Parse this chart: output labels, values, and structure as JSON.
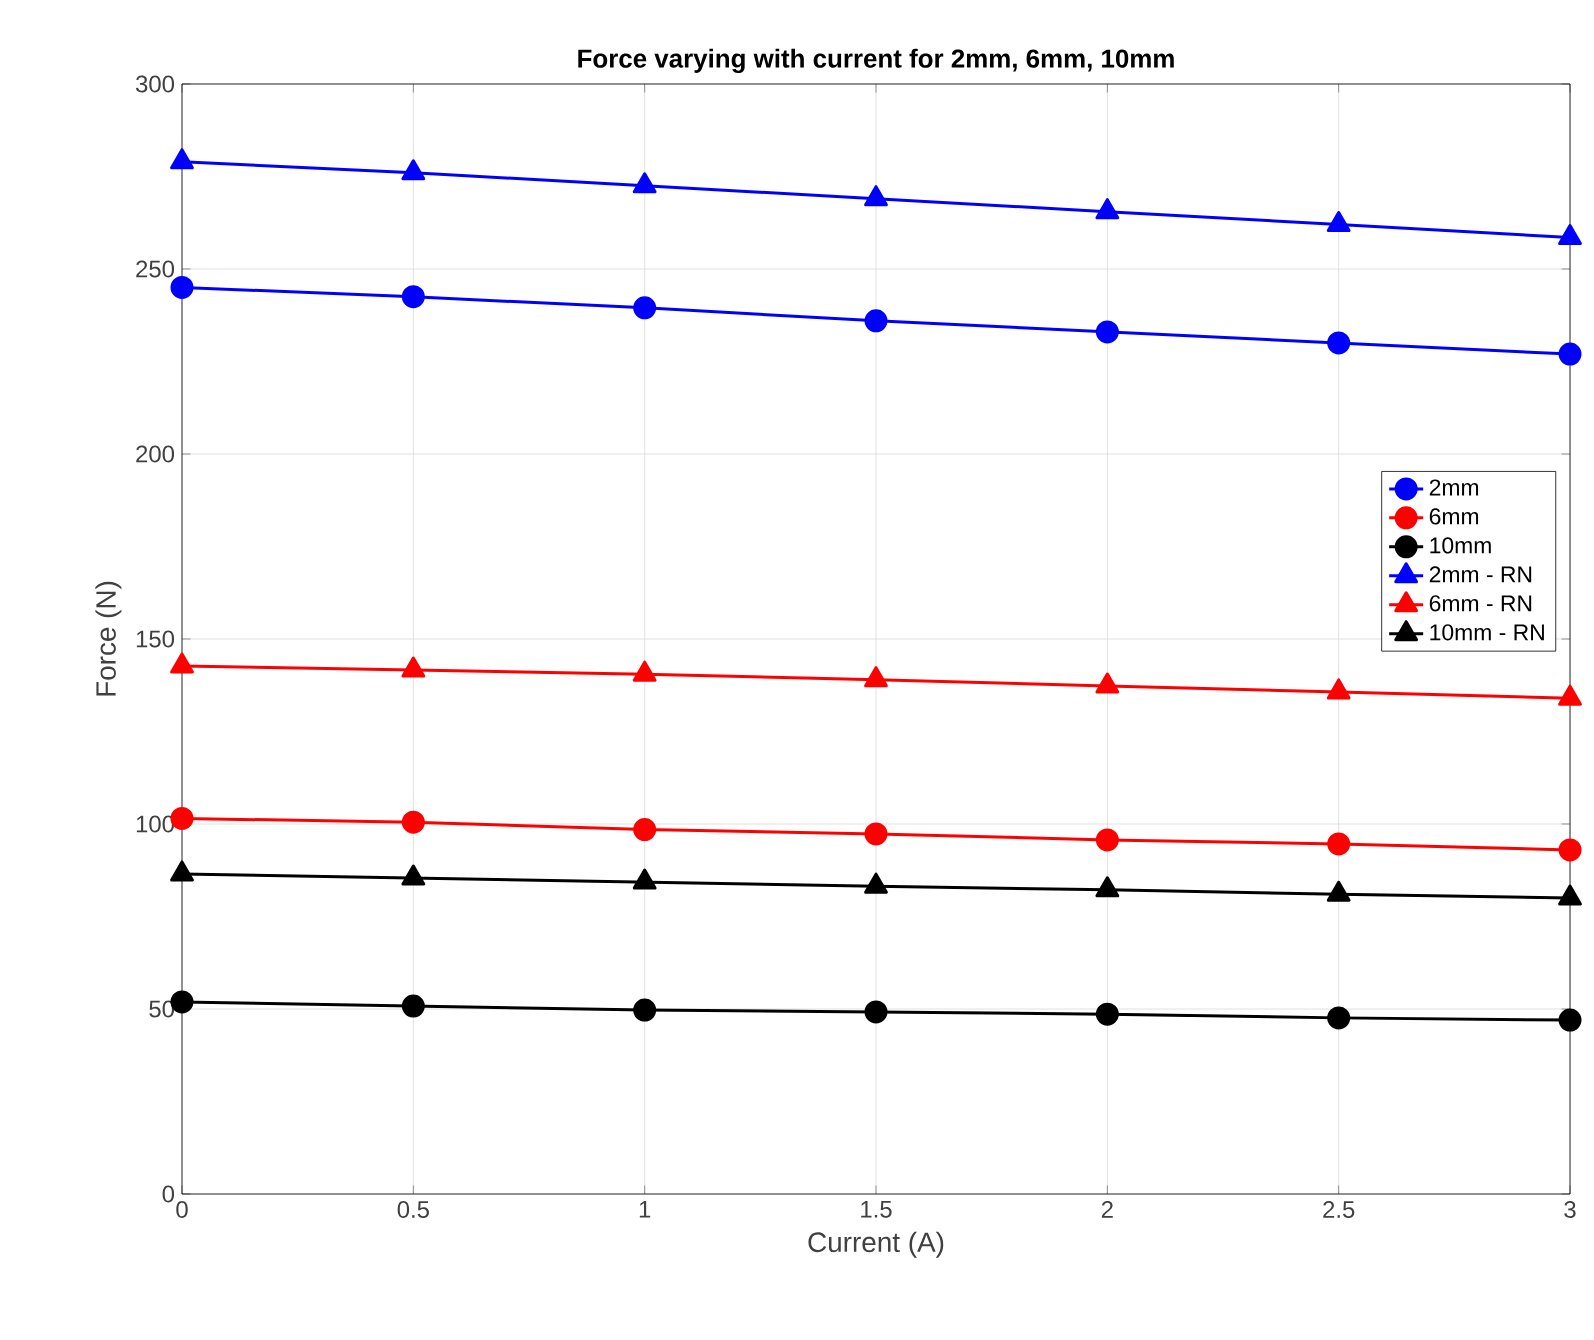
{
  "chart_data": {
    "type": "line",
    "title": "Force varying with current for 2mm, 6mm, 10mm",
    "xlabel": "Current (A)",
    "ylabel": "Force (N)",
    "x": [
      0,
      0.5,
      1,
      1.5,
      2,
      2.5,
      3
    ],
    "series": [
      {
        "name": "2mm",
        "color": "#0000ff",
        "marker": "circle",
        "values": [
          245,
          242.5,
          239.5,
          236,
          233,
          230,
          227
        ]
      },
      {
        "name": "6mm",
        "color": "#ff0000",
        "marker": "circle",
        "values": [
          101.5,
          100.5,
          98.5,
          97.3,
          95.7,
          94.6,
          93
        ]
      },
      {
        "name": "10mm",
        "color": "#000000",
        "marker": "circle",
        "values": [
          51.9,
          50.8,
          49.7,
          49.2,
          48.6,
          47.6,
          47
        ]
      },
      {
        "name": "2mm - RN",
        "color": "#0000ff",
        "marker": "triangle",
        "values": [
          279,
          276,
          272.5,
          269,
          265.5,
          262,
          258.5
        ]
      },
      {
        "name": "6mm - RN",
        "color": "#ff0000",
        "marker": "triangle",
        "values": [
          142.7,
          141.6,
          140.5,
          139,
          137.3,
          135.7,
          134
        ]
      },
      {
        "name": "10mm - RN",
        "color": "#000000",
        "marker": "triangle",
        "values": [
          86.5,
          85.4,
          84.3,
          83.2,
          82.2,
          81,
          80
        ]
      }
    ],
    "xlim": [
      0,
      3
    ],
    "xticks": [
      0,
      0.5,
      1,
      1.5,
      2,
      2.5,
      3
    ],
    "ylim": [
      0,
      300
    ],
    "yticks": [
      0,
      50,
      100,
      150,
      200,
      250,
      300
    ],
    "grid": true,
    "legend": "right",
    "line_style": "solid"
  }
}
